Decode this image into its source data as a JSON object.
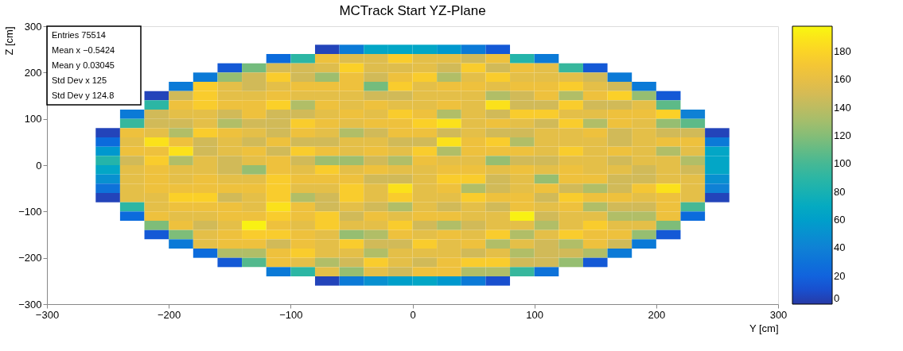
{
  "chart_data": {
    "type": "heatmap",
    "title": "MCTrack Start YZ-Plane",
    "xlabel": "Y [cm]",
    "ylabel": "Z [cm]",
    "x": [
      -250,
      -230,
      -210,
      -190,
      -170,
      -150,
      -130,
      -110,
      -90,
      -70,
      -50,
      -30,
      -10,
      10,
      30,
      50,
      70,
      90,
      110,
      130,
      150,
      170,
      190,
      210,
      230,
      250
    ],
    "y": [
      250,
      230,
      210,
      190,
      170,
      150,
      130,
      110,
      90,
      70,
      50,
      30,
      10,
      -10,
      -30,
      -50,
      -70,
      -90,
      -110,
      -130,
      -150,
      -170,
      -190,
      -210,
      -230,
      -250
    ],
    "cells": [
      [
        null,
        null,
        null,
        null,
        null,
        null,
        null,
        null,
        null,
        5,
        35,
        65,
        65,
        65,
        55,
        35,
        15,
        null,
        null,
        null,
        null,
        null,
        null,
        null,
        null,
        null
      ],
      [
        null,
        null,
        null,
        null,
        null,
        null,
        null,
        25,
        90,
        165,
        155,
        155,
        175,
        158,
        158,
        148,
        165,
        85,
        35,
        null,
        null,
        null,
        null,
        null,
        null,
        null
      ],
      [
        null,
        null,
        null,
        null,
        null,
        15,
        115,
        150,
        150,
        155,
        178,
        155,
        155,
        158,
        148,
        175,
        148,
        165,
        158,
        95,
        15,
        null,
        null,
        null,
        null,
        null
      ],
      [
        null,
        null,
        null,
        null,
        35,
        125,
        148,
        175,
        148,
        128,
        165,
        148,
        165,
        175,
        135,
        158,
        175,
        158,
        158,
        158,
        148,
        35,
        null,
        null,
        null,
        null
      ],
      [
        null,
        null,
        null,
        35,
        175,
        158,
        148,
        158,
        165,
        165,
        165,
        115,
        175,
        158,
        165,
        165,
        158,
        165,
        165,
        175,
        158,
        148,
        35,
        null,
        null,
        null
      ],
      [
        null,
        null,
        5,
        148,
        175,
        158,
        158,
        165,
        158,
        158,
        158,
        148,
        148,
        158,
        158,
        158,
        135,
        148,
        165,
        135,
        165,
        178,
        125,
        15,
        null,
        null
      ],
      [
        null,
        null,
        90,
        165,
        175,
        165,
        165,
        178,
        135,
        165,
        158,
        165,
        158,
        158,
        165,
        158,
        188,
        148,
        148,
        175,
        148,
        148,
        158,
        108,
        null,
        null
      ],
      [
        null,
        35,
        148,
        158,
        158,
        148,
        165,
        148,
        148,
        158,
        165,
        158,
        175,
        165,
        135,
        158,
        148,
        175,
        175,
        158,
        158,
        165,
        165,
        178,
        40,
        null
      ],
      [
        null,
        95,
        148,
        148,
        158,
        135,
        148,
        148,
        175,
        165,
        158,
        165,
        165,
        178,
        188,
        158,
        165,
        158,
        148,
        175,
        135,
        165,
        158,
        125,
        108,
        null
      ],
      [
        5,
        165,
        158,
        135,
        175,
        165,
        158,
        148,
        165,
        158,
        135,
        148,
        165,
        165,
        148,
        158,
        148,
        148,
        158,
        158,
        165,
        148,
        158,
        148,
        148,
        5
      ],
      [
        25,
        158,
        188,
        165,
        148,
        158,
        148,
        165,
        148,
        148,
        158,
        158,
        148,
        148,
        188,
        165,
        175,
        135,
        158,
        158,
        158,
        148,
        158,
        165,
        165,
        35
      ],
      [
        55,
        165,
        165,
        188,
        148,
        158,
        165,
        148,
        175,
        165,
        158,
        165,
        158,
        175,
        135,
        165,
        165,
        165,
        158,
        175,
        158,
        165,
        158,
        135,
        158,
        65
      ],
      [
        85,
        148,
        175,
        135,
        158,
        148,
        158,
        165,
        148,
        128,
        128,
        148,
        135,
        165,
        158,
        158,
        125,
        148,
        148,
        158,
        158,
        148,
        158,
        158,
        135,
        65
      ],
      [
        65,
        158,
        165,
        158,
        158,
        148,
        125,
        165,
        158,
        175,
        158,
        165,
        158,
        158,
        165,
        165,
        158,
        165,
        158,
        165,
        158,
        158,
        148,
        158,
        148,
        65
      ],
      [
        50,
        158,
        165,
        158,
        165,
        158,
        158,
        175,
        165,
        165,
        165,
        148,
        148,
        158,
        175,
        175,
        148,
        158,
        125,
        165,
        165,
        148,
        148,
        158,
        158,
        50
      ],
      [
        30,
        158,
        165,
        165,
        165,
        165,
        165,
        175,
        158,
        158,
        175,
        158,
        188,
        158,
        165,
        135,
        148,
        158,
        165,
        148,
        135,
        148,
        170,
        188,
        158,
        40
      ],
      [
        5,
        158,
        158,
        178,
        178,
        148,
        158,
        175,
        135,
        148,
        175,
        158,
        175,
        158,
        158,
        175,
        165,
        165,
        148,
        175,
        165,
        165,
        158,
        165,
        158,
        5
      ],
      [
        null,
        90,
        158,
        165,
        165,
        165,
        158,
        188,
        165,
        148,
        158,
        148,
        135,
        158,
        148,
        158,
        148,
        165,
        158,
        165,
        135,
        148,
        148,
        165,
        100,
        null
      ],
      [
        null,
        25,
        165,
        158,
        158,
        165,
        165,
        175,
        165,
        175,
        148,
        165,
        158,
        165,
        165,
        158,
        158,
        195,
        148,
        158,
        158,
        135,
        135,
        165,
        25,
        null
      ],
      [
        null,
        null,
        118,
        165,
        148,
        158,
        195,
        165,
        158,
        175,
        158,
        158,
        175,
        148,
        135,
        148,
        158,
        158,
        135,
        158,
        175,
        158,
        158,
        118,
        null,
        null
      ],
      [
        null,
        null,
        15,
        118,
        158,
        165,
        175,
        175,
        165,
        158,
        125,
        135,
        165,
        158,
        165,
        158,
        175,
        135,
        158,
        175,
        165,
        165,
        125,
        15,
        null,
        null
      ],
      [
        null,
        null,
        null,
        35,
        158,
        165,
        165,
        148,
        165,
        158,
        175,
        148,
        148,
        175,
        158,
        165,
        135,
        158,
        148,
        135,
        165,
        148,
        35,
        null,
        null,
        null
      ],
      [
        null,
        null,
        null,
        null,
        25,
        135,
        135,
        165,
        175,
        158,
        158,
        135,
        158,
        158,
        158,
        148,
        158,
        135,
        148,
        148,
        135,
        35,
        null,
        null,
        null,
        null
      ],
      [
        null,
        null,
        null,
        null,
        null,
        15,
        105,
        165,
        158,
        135,
        148,
        175,
        158,
        148,
        165,
        175,
        175,
        148,
        148,
        125,
        15,
        null,
        null,
        null,
        null,
        null
      ],
      [
        null,
        null,
        null,
        null,
        null,
        null,
        null,
        35,
        90,
        158,
        125,
        158,
        148,
        165,
        165,
        135,
        135,
        95,
        30,
        null,
        null,
        null,
        null,
        null,
        null,
        null
      ],
      [
        null,
        null,
        null,
        null,
        null,
        null,
        null,
        null,
        null,
        5,
        35,
        50,
        60,
        65,
        55,
        35,
        10,
        null,
        null,
        null,
        null,
        null,
        null,
        null,
        null,
        null
      ]
    ],
    "xlim": [
      -300,
      300
    ],
    "xticks": [
      {
        "value": -300,
        "label": "−300"
      },
      {
        "value": -200,
        "label": "−200"
      },
      {
        "value": -100,
        "label": "−100"
      },
      0,
      100,
      200,
      300
    ],
    "ylim": [
      -300,
      300
    ],
    "yticks": [
      {
        "value": -300,
        "label": "−300"
      },
      {
        "value": -200,
        "label": "−200"
      },
      {
        "value": -100,
        "label": "−100"
      },
      0,
      100,
      200,
      300
    ],
    "clim": [
      0,
      198
    ],
    "cticks": [
      0,
      20,
      40,
      60,
      80,
      100,
      120,
      140,
      160,
      180
    ],
    "annotations": [
      "Entries 75514",
      "Mean x −0.5424",
      "Mean y 0.03045",
      "Std Dev x 125",
      "Std Dev y 124.8"
    ]
  }
}
